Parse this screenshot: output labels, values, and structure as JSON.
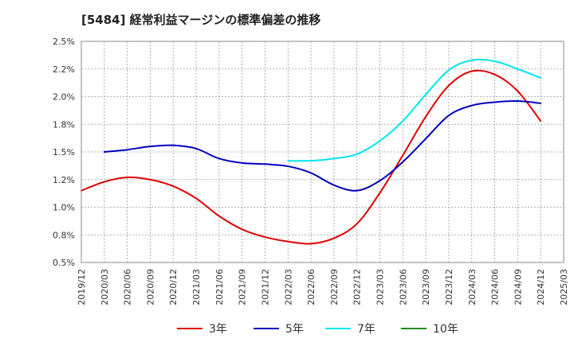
{
  "chart_data": {
    "type": "line",
    "title": "[5484]  経常利益マージンの標準偏差の推移",
    "xlabel": "",
    "ylabel": "",
    "ylim": [
      0.5,
      2.5
    ],
    "grid": true,
    "legend_position": "bottom",
    "x_ticks": [
      "2019/12",
      "2020/03",
      "2020/06",
      "2020/09",
      "2020/12",
      "2021/03",
      "2021/06",
      "2021/09",
      "2021/12",
      "2022/03",
      "2022/06",
      "2022/09",
      "2022/12",
      "2023/03",
      "2023/06",
      "2023/09",
      "2023/12",
      "2024/03",
      "2024/06",
      "2024/09",
      "2024/12",
      "2025/03"
    ],
    "y_ticks": [
      {
        "value": 0.5,
        "label": "0.5%"
      },
      {
        "value": 0.75,
        "label": "0.8%"
      },
      {
        "value": 1.0,
        "label": "1.0%"
      },
      {
        "value": 1.25,
        "label": "1.2%"
      },
      {
        "value": 1.5,
        "label": "1.5%"
      },
      {
        "value": 1.75,
        "label": "1.8%"
      },
      {
        "value": 2.0,
        "label": "2.0%"
      },
      {
        "value": 2.25,
        "label": "2.2%"
      },
      {
        "value": 2.5,
        "label": "2.5%"
      }
    ],
    "series": [
      {
        "name": "3年",
        "color": "#dd0000",
        "x": [
          "2019/12",
          "2020/03",
          "2020/06",
          "2020/09",
          "2020/12",
          "2021/03",
          "2021/06",
          "2021/09",
          "2021/12",
          "2022/03",
          "2022/06",
          "2022/09",
          "2022/12",
          "2023/03",
          "2023/06",
          "2023/09",
          "2023/12",
          "2024/03",
          "2024/06",
          "2024/09",
          "2024/12"
        ],
        "values": [
          1.15,
          1.23,
          1.27,
          1.25,
          1.19,
          1.08,
          0.92,
          0.8,
          0.73,
          0.69,
          0.67,
          0.72,
          0.85,
          1.13,
          1.47,
          1.82,
          2.1,
          2.23,
          2.2,
          2.05,
          1.78
        ]
      },
      {
        "name": "5年",
        "color": "#0000bb",
        "x": [
          "2020/03",
          "2020/06",
          "2020/09",
          "2020/12",
          "2021/03",
          "2021/06",
          "2021/09",
          "2021/12",
          "2022/03",
          "2022/06",
          "2022/09",
          "2022/12",
          "2023/03",
          "2023/06",
          "2023/09",
          "2023/12",
          "2024/03",
          "2024/06",
          "2024/09",
          "2024/12"
        ],
        "values": [
          1.5,
          1.52,
          1.55,
          1.56,
          1.53,
          1.44,
          1.4,
          1.39,
          1.37,
          1.31,
          1.2,
          1.15,
          1.24,
          1.41,
          1.62,
          1.83,
          1.92,
          1.95,
          1.96,
          1.94
        ]
      },
      {
        "name": "7年",
        "color": "#00e5ee",
        "x": [
          "2022/03",
          "2022/06",
          "2022/09",
          "2022/12",
          "2023/03",
          "2023/06",
          "2023/09",
          "2023/12",
          "2024/03",
          "2024/06",
          "2024/09",
          "2024/12"
        ],
        "values": [
          1.42,
          1.42,
          1.44,
          1.48,
          1.6,
          1.78,
          2.02,
          2.24,
          2.33,
          2.32,
          2.25,
          2.17
        ]
      },
      {
        "name": "10年",
        "color": "#228b22",
        "x": [],
        "values": []
      }
    ]
  }
}
